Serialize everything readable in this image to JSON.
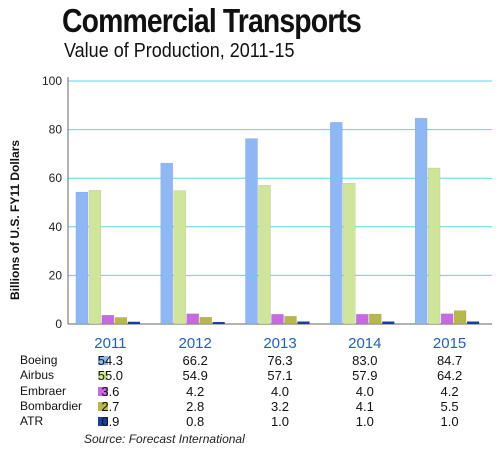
{
  "chart_data": {
    "type": "bar",
    "title": "Commercial Transports",
    "subtitle": "Value of Production, 2011-15",
    "ylabel": "Billions of U.S. FY11 Dollars",
    "xlabel": "",
    "ylim": [
      0,
      100
    ],
    "yticks": [
      0,
      20,
      40,
      60,
      80,
      100
    ],
    "categories": [
      "2011",
      "2012",
      "2013",
      "2014",
      "2015"
    ],
    "series": [
      {
        "name": "Boeing",
        "color": "#8db8f5",
        "values": [
          54.3,
          66.2,
          76.3,
          83.0,
          84.7
        ],
        "labels": [
          "54.3",
          "66.2",
          "76.3",
          "83.0",
          "84.7"
        ]
      },
      {
        "name": "Airbus",
        "color": "#cfe59a",
        "values": [
          55.0,
          54.9,
          57.1,
          57.9,
          64.2
        ],
        "labels": [
          "55.0",
          "54.9",
          "57.1",
          "57.9",
          "64.2"
        ]
      },
      {
        "name": "Embraer",
        "color": "#c56ae0",
        "values": [
          3.6,
          4.2,
          4.0,
          4.0,
          4.2
        ],
        "labels": [
          "3.6",
          "4.2",
          "4.0",
          "4.0",
          "4.2"
        ]
      },
      {
        "name": "Bombardier",
        "color": "#b8b84a",
        "values": [
          2.7,
          2.8,
          3.2,
          4.1,
          5.5
        ],
        "labels": [
          "2.7",
          "2.8",
          "3.2",
          "4.1",
          "5.5"
        ]
      },
      {
        "name": "ATR",
        "color": "#1a3fa0",
        "values": [
          0.9,
          0.8,
          1.0,
          1.0,
          1.0
        ],
        "labels": [
          "0.9",
          "0.8",
          "1.0",
          "1.0",
          "1.0"
        ]
      }
    ],
    "grid": true,
    "grid_color": "#5bd6e6",
    "category_label_color": "#1f5fc4",
    "source": "Source:  Forecast International"
  }
}
